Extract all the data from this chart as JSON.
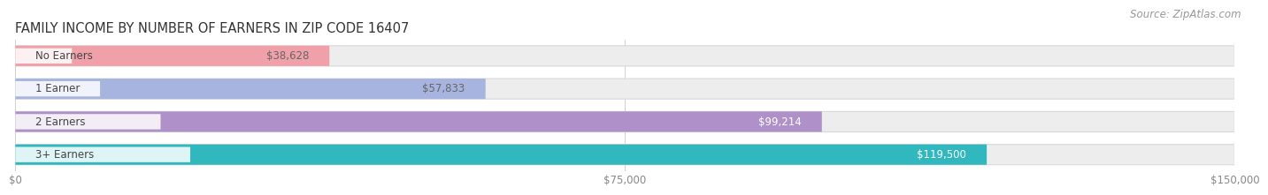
{
  "title": "FAMILY INCOME BY NUMBER OF EARNERS IN ZIP CODE 16407",
  "source": "Source: ZipAtlas.com",
  "categories": [
    "No Earners",
    "1 Earner",
    "2 Earners",
    "3+ Earners"
  ],
  "values": [
    38628,
    57833,
    99214,
    119500
  ],
  "bar_colors": [
    "#f0a0a8",
    "#a8b4e0",
    "#b090c8",
    "#30b8be"
  ],
  "value_label_colors": [
    "#666666",
    "#666666",
    "#ffffff",
    "#ffffff"
  ],
  "value_labels": [
    "$38,628",
    "$57,833",
    "$99,214",
    "$119,500"
  ],
  "xlim": [
    0,
    150000
  ],
  "xticklabels": [
    "$0",
    "$75,000",
    "$150,000"
  ],
  "xtick_vals": [
    0,
    75000,
    150000
  ],
  "bar_height": 0.62,
  "figure_bg": "#ffffff",
  "bar_bg_color": "#ededee",
  "bar_bg_border": "#d8d8da",
  "title_fontsize": 10.5,
  "source_fontsize": 8.5,
  "cat_fontsize": 8.5,
  "val_fontsize": 8.5,
  "cat_label_color": "#444444",
  "xtick_color": "#888888",
  "grid_color": "#d0d0d0"
}
